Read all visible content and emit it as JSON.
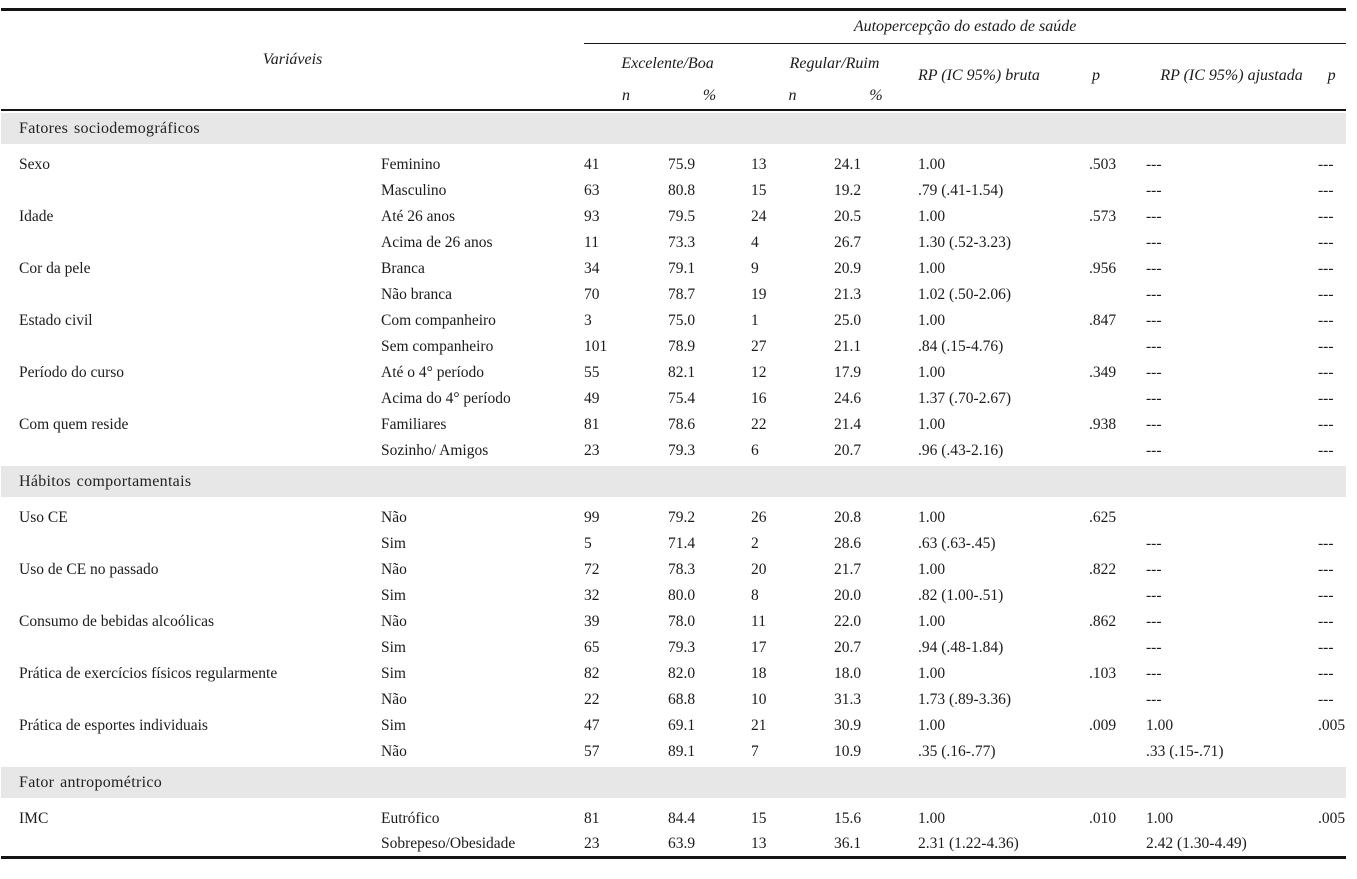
{
  "table": {
    "span_header": "Autopercepção do estado de saúde",
    "variables_header": "Variáveis",
    "groups": {
      "excelente": "Excelente/Boa",
      "regular": "Regular/Ruim",
      "rp_bruta": "RP (IC 95%) bruta",
      "p_bruta": "p",
      "rp_ajustada": "RP (IC 95%) ajustada",
      "p_ajustada": "p"
    },
    "sub_headers": {
      "n1": "n",
      "pct1": "%",
      "n2": "n",
      "pct2": "%"
    },
    "colors": {
      "section_band": "#e7e7e7",
      "rule": "#141414",
      "text": "#1b1b1b"
    },
    "sections": [
      {
        "title": "Fatores sociodemográficos",
        "rows": [
          {
            "variable": "Sexo",
            "category": "Feminino",
            "n_exc": "41",
            "pct_exc": "75.9",
            "n_reg": "13",
            "pct_reg": "24.1",
            "rp_bruta": "1.00",
            "p_bruta": ".503",
            "rp_ajustada": "---",
            "p_ajustada": "---"
          },
          {
            "variable": "",
            "category": "Masculino",
            "n_exc": "63",
            "pct_exc": "80.8",
            "n_reg": "15",
            "pct_reg": "19.2",
            "rp_bruta": ".79 (.41-1.54)",
            "p_bruta": "",
            "rp_ajustada": "---",
            "p_ajustada": "---"
          },
          {
            "variable": "Idade",
            "category": "Até 26 anos",
            "n_exc": "93",
            "pct_exc": "79.5",
            "n_reg": "24",
            "pct_reg": "20.5",
            "rp_bruta": "1.00",
            "p_bruta": ".573",
            "rp_ajustada": "---",
            "p_ajustada": "---"
          },
          {
            "variable": "",
            "category": "Acima de 26 anos",
            "n_exc": "11",
            "pct_exc": "73.3",
            "n_reg": "4",
            "pct_reg": "26.7",
            "rp_bruta": "1.30 (.52-3.23)",
            "p_bruta": "",
            "rp_ajustada": "---",
            "p_ajustada": "---"
          },
          {
            "variable": "Cor da pele",
            "category": "Branca",
            "n_exc": "34",
            "pct_exc": "79.1",
            "n_reg": "9",
            "pct_reg": "20.9",
            "rp_bruta": "1.00",
            "p_bruta": ".956",
            "rp_ajustada": "---",
            "p_ajustada": "---"
          },
          {
            "variable": "",
            "category": "Não branca",
            "n_exc": "70",
            "pct_exc": "78.7",
            "n_reg": "19",
            "pct_reg": "21.3",
            "rp_bruta": "1.02 (.50-2.06)",
            "p_bruta": "",
            "rp_ajustada": "---",
            "p_ajustada": "---"
          },
          {
            "variable": "Estado civil",
            "category": "Com companheiro",
            "n_exc": "3",
            "pct_exc": "75.0",
            "n_reg": "1",
            "pct_reg": "25.0",
            "rp_bruta": "1.00",
            "p_bruta": ".847",
            "rp_ajustada": "---",
            "p_ajustada": "---"
          },
          {
            "variable": "",
            "category": "Sem companheiro",
            "n_exc": "101",
            "pct_exc": "78.9",
            "n_reg": "27",
            "pct_reg": "21.1",
            "rp_bruta": ".84 (.15-4.76)",
            "p_bruta": "",
            "rp_ajustada": "---",
            "p_ajustada": "---"
          },
          {
            "variable": "Período do curso",
            "category": "Até o 4° período",
            "n_exc": "55",
            "pct_exc": "82.1",
            "n_reg": "12",
            "pct_reg": "17.9",
            "rp_bruta": "1.00",
            "p_bruta": ".349",
            "rp_ajustada": "---",
            "p_ajustada": "---"
          },
          {
            "variable": "",
            "category": "Acima do 4° período",
            "n_exc": "49",
            "pct_exc": "75.4",
            "n_reg": "16",
            "pct_reg": "24.6",
            "rp_bruta": "1.37 (.70-2.67)",
            "p_bruta": "",
            "rp_ajustada": "---",
            "p_ajustada": "---"
          },
          {
            "variable": "Com quem reside",
            "category": "Familiares",
            "n_exc": "81",
            "pct_exc": "78.6",
            "n_reg": "22",
            "pct_reg": "21.4",
            "rp_bruta": "1.00",
            "p_bruta": ".938",
            "rp_ajustada": "---",
            "p_ajustada": "---"
          },
          {
            "variable": "",
            "category": "Sozinho/ Amigos",
            "n_exc": "23",
            "pct_exc": "79.3",
            "n_reg": "6",
            "pct_reg": "20.7",
            "rp_bruta": ".96 (.43-2.16)",
            "p_bruta": "",
            "rp_ajustada": "---",
            "p_ajustada": "---"
          }
        ]
      },
      {
        "title": "Hábitos comportamentais",
        "rows": [
          {
            "variable": "Uso CE",
            "category": "Não",
            "n_exc": "99",
            "pct_exc": "79.2",
            "n_reg": "26",
            "pct_reg": "20.8",
            "rp_bruta": "1.00",
            "p_bruta": ".625",
            "rp_ajustada": "",
            "p_ajustada": ""
          },
          {
            "variable": "",
            "category": "Sim",
            "n_exc": "5",
            "pct_exc": "71.4",
            "n_reg": "2",
            "pct_reg": "28.6",
            "rp_bruta": ".63 (.63-.45)",
            "p_bruta": "",
            "rp_ajustada": "---",
            "p_ajustada": "---"
          },
          {
            "variable": "Uso de CE no passado",
            "category": "Não",
            "n_exc": "72",
            "pct_exc": "78.3",
            "n_reg": "20",
            "pct_reg": "21.7",
            "rp_bruta": "1.00",
            "p_bruta": ".822",
            "rp_ajustada": "---",
            "p_ajustada": "---"
          },
          {
            "variable": "",
            "category": "Sim",
            "n_exc": "32",
            "pct_exc": "80.0",
            "n_reg": "8",
            "pct_reg": "20.0",
            "rp_bruta": ".82 (1.00-.51)",
            "p_bruta": "",
            "rp_ajustada": "---",
            "p_ajustada": "---"
          },
          {
            "variable": "Consumo de bebidas alcoólicas",
            "category": "Não",
            "n_exc": "39",
            "pct_exc": "78.0",
            "n_reg": "11",
            "pct_reg": "22.0",
            "rp_bruta": "1.00",
            "p_bruta": ".862",
            "rp_ajustada": "---",
            "p_ajustada": "---"
          },
          {
            "variable": "",
            "category": "Sim",
            "n_exc": "65",
            "pct_exc": "79.3",
            "n_reg": "17",
            "pct_reg": "20.7",
            "rp_bruta": ".94 (.48-1.84)",
            "p_bruta": "",
            "rp_ajustada": "---",
            "p_ajustada": "---"
          },
          {
            "variable": "Prática de exercícios físicos regularmente",
            "category": "Sim",
            "n_exc": "82",
            "pct_exc": "82.0",
            "n_reg": "18",
            "pct_reg": "18.0",
            "rp_bruta": "1.00",
            "p_bruta": ".103",
            "rp_ajustada": "---",
            "p_ajustada": "---"
          },
          {
            "variable": "",
            "category": "Não",
            "n_exc": "22",
            "pct_exc": "68.8",
            "n_reg": "10",
            "pct_reg": "31.3",
            "rp_bruta": "1.73 (.89-3.36)",
            "p_bruta": "",
            "rp_ajustada": "---",
            "p_ajustada": "---"
          },
          {
            "variable": "Prática de esportes individuais",
            "category": "Sim",
            "n_exc": "47",
            "pct_exc": "69.1",
            "n_reg": "21",
            "pct_reg": "30.9",
            "rp_bruta": "1.00",
            "p_bruta": ".009",
            "rp_ajustada": "1.00",
            "p_ajustada": ".005"
          },
          {
            "variable": "",
            "category": "Não",
            "n_exc": "57",
            "pct_exc": "89.1",
            "n_reg": "7",
            "pct_reg": "10.9",
            "rp_bruta": ".35 (.16-.77)",
            "p_bruta": "",
            "rp_ajustada": ".33 (.15-.71)",
            "p_ajustada": ""
          }
        ]
      },
      {
        "title": "Fator antropométrico",
        "rows": [
          {
            "variable": "IMC",
            "category": "Eutrófico",
            "n_exc": "81",
            "pct_exc": "84.4",
            "n_reg": "15",
            "pct_reg": "15.6",
            "rp_bruta": "1.00",
            "p_bruta": ".010",
            "rp_ajustada": "1.00",
            "p_ajustada": ".005"
          },
          {
            "variable": "",
            "category": "Sobrepeso/Obesidade",
            "n_exc": "23",
            "pct_exc": "63.9",
            "n_reg": "13",
            "pct_reg": "36.1",
            "rp_bruta": "2.31 (1.22-4.36)",
            "p_bruta": "",
            "rp_ajustada": "2.42 (1.30-4.49)",
            "p_ajustada": ""
          }
        ]
      }
    ]
  }
}
